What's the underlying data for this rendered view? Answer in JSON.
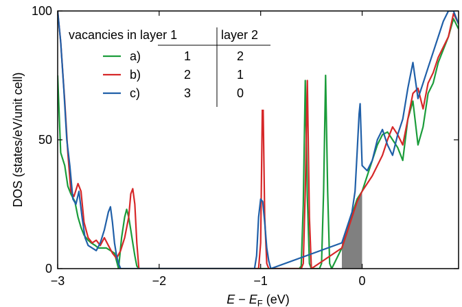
{
  "chart_data": {
    "type": "line",
    "xlabel": "E − E_F (eV)",
    "xlabel_parts": {
      "e": "E",
      "minus": " − ",
      "ef": "E",
      "sub": "F",
      "unit": " (eV)"
    },
    "ylabel": "DOS (states/eV/unit cell)",
    "xlim": [
      -3.0,
      0.95
    ],
    "ylim": [
      0,
      100
    ],
    "x_ticks": [
      -3,
      -2,
      -1,
      0
    ],
    "x_tick_labels": [
      "−3",
      "−2",
      "−1",
      "0"
    ],
    "y_ticks": [
      0,
      50,
      100
    ],
    "y_tick_labels": [
      "0",
      "50",
      "100"
    ],
    "grid": false,
    "legend": {
      "placement": "top-left",
      "header_col1": "vacancies in layer 1",
      "header_col2": "layer 2",
      "rows": [
        {
          "label": "a)",
          "layer1": "1",
          "layer2": "2"
        },
        {
          "label": "b)",
          "layer1": "2",
          "layer2": "1"
        },
        {
          "label": "c)",
          "layer1": "3",
          "layer2": "0"
        }
      ]
    },
    "occupied_fill": {
      "color": "#808080",
      "x": [
        -0.2,
        -0.15,
        -0.1,
        -0.05,
        0.0
      ],
      "y": [
        10,
        15,
        22,
        27,
        30
      ]
    },
    "series": [
      {
        "name": "a)",
        "color": "#1a9c3a",
        "x": [
          -3.0,
          -2.97,
          -2.93,
          -2.9,
          -2.87,
          -2.83,
          -2.8,
          -2.77,
          -2.74,
          -2.7,
          -2.67,
          -2.63,
          -2.6,
          -2.56,
          -2.52,
          -2.48,
          -2.44,
          -2.4,
          -2.37,
          -2.34,
          -2.32,
          -2.3,
          -2.28,
          -2.26,
          -2.24,
          -2.22,
          -2.2,
          -0.62,
          -0.6,
          -0.58,
          -0.56,
          -0.54,
          -0.52,
          -0.5,
          -0.42,
          -0.4,
          -0.38,
          -0.36,
          -0.34,
          -0.32,
          -0.3,
          -0.2,
          -0.15,
          -0.1,
          -0.05,
          0.0,
          0.05,
          0.1,
          0.15,
          0.2,
          0.25,
          0.3,
          0.35,
          0.4,
          0.45,
          0.5,
          0.55,
          0.6,
          0.65,
          0.7,
          0.75,
          0.8,
          0.85,
          0.9,
          0.95
        ],
        "y": [
          75,
          45,
          40,
          32,
          29,
          26,
          20,
          16,
          13,
          11,
          10,
          9,
          8,
          8,
          8,
          7,
          6,
          0,
          12,
          20,
          23,
          20,
          15,
          10,
          5,
          1,
          0,
          0,
          1,
          25,
          73,
          28,
          2,
          0,
          0,
          2,
          30,
          75,
          30,
          2,
          0,
          8,
          14,
          21,
          27,
          30,
          36,
          42,
          48,
          52,
          53,
          50,
          47,
          42,
          58,
          65,
          48,
          55,
          68,
          72,
          80,
          85,
          90,
          97,
          93
        ]
      },
      {
        "name": "b)",
        "color": "#d62728",
        "x": [
          -3.0,
          -2.97,
          -2.93,
          -2.9,
          -2.87,
          -2.84,
          -2.8,
          -2.77,
          -2.74,
          -2.7,
          -2.66,
          -2.62,
          -2.58,
          -2.54,
          -2.5,
          -2.46,
          -2.42,
          -2.38,
          -2.34,
          -2.3,
          -2.28,
          -2.26,
          -2.24,
          -2.22,
          -2.2,
          -1.02,
          -1.0,
          -0.98,
          -0.96,
          -0.94,
          -0.92,
          -0.6,
          -0.58,
          -0.56,
          -0.54,
          -0.52,
          -0.5,
          -0.2,
          -0.15,
          -0.1,
          -0.05,
          0.0,
          0.05,
          0.1,
          0.15,
          0.2,
          0.25,
          0.3,
          0.35,
          0.4,
          0.45,
          0.5,
          0.55,
          0.6,
          0.65,
          0.7,
          0.75,
          0.8,
          0.85,
          0.9,
          0.95
        ],
        "y": [
          100,
          88,
          65,
          45,
          30,
          28,
          33,
          30,
          18,
          12,
          10,
          11,
          9,
          12,
          9,
          6,
          4,
          7,
          12,
          20,
          29,
          31,
          25,
          10,
          0,
          0,
          10,
          74,
          20,
          2,
          0,
          0,
          2,
          30,
          73,
          20,
          0,
          8,
          14,
          20,
          26,
          30,
          33,
          36,
          40,
          44,
          50,
          55,
          52,
          48,
          58,
          68,
          70,
          62,
          72,
          76,
          82,
          86,
          90,
          99,
          95
        ]
      },
      {
        "name": "c)",
        "color": "#1f5fa8",
        "x": [
          -3.0,
          -2.97,
          -2.94,
          -2.91,
          -2.88,
          -2.85,
          -2.82,
          -2.79,
          -2.76,
          -2.73,
          -2.7,
          -2.66,
          -2.62,
          -2.58,
          -2.54,
          -2.5,
          -2.48,
          -2.46,
          -2.44,
          -2.42,
          -2.4,
          -2.38,
          -1.06,
          -1.04,
          -1.02,
          -1.0,
          -0.98,
          -0.96,
          -0.94,
          -0.92,
          -0.9,
          -0.2,
          -0.15,
          -0.1,
          -0.07,
          -0.05,
          -0.03,
          -0.02,
          0.0,
          0.05,
          0.1,
          0.15,
          0.2,
          0.25,
          0.3,
          0.35,
          0.4,
          0.45,
          0.5,
          0.55,
          0.6,
          0.65,
          0.7,
          0.75,
          0.8,
          0.85,
          0.9,
          0.95
        ],
        "y": [
          100,
          88,
          70,
          50,
          40,
          27,
          25,
          30,
          20,
          12,
          9,
          8,
          7,
          10,
          15,
          22,
          24,
          18,
          10,
          5,
          2,
          0,
          0,
          5,
          20,
          27,
          26,
          18,
          8,
          3,
          0,
          10,
          16,
          22,
          30,
          45,
          60,
          64,
          40,
          38,
          42,
          50,
          54,
          48,
          44,
          52,
          58,
          70,
          80,
          66,
          72,
          78,
          84,
          90,
          96,
          100,
          100,
          95
        ]
      }
    ]
  }
}
